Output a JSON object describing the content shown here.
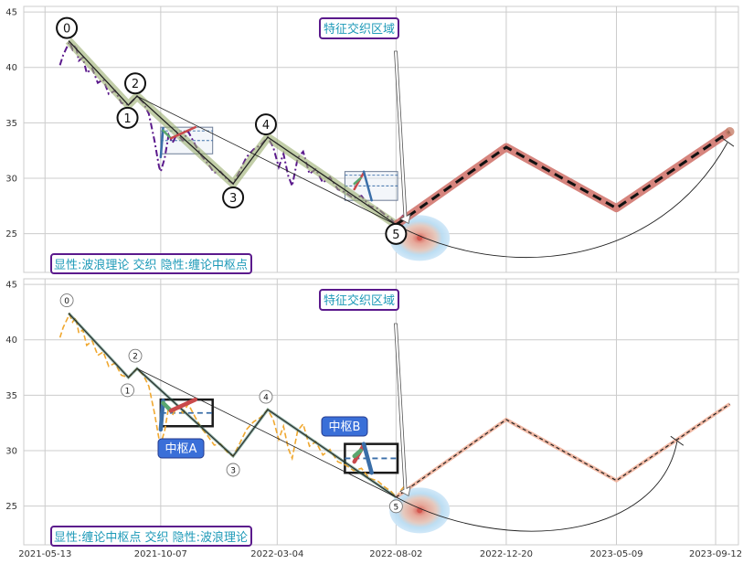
{
  "chart_data": [
    {
      "type": "line",
      "panel": "top",
      "x_ticks": [
        "2021-05-13",
        "2021-10-07",
        "2022-03-04",
        "2022-08-02",
        "2022-12-20",
        "2023-05-09",
        "2023-09-12"
      ],
      "y_ticks": [
        25,
        30,
        35,
        40,
        45
      ],
      "ylim": [
        21.5,
        45.5
      ],
      "xlim": [
        "2021-04-16",
        "2023-10-11"
      ],
      "grid": true,
      "annotation_title": "特征交织区域",
      "caption": "显性:波浪理论 交织 隐性:缠论中枢点",
      "wave_points": [
        {
          "label": "0",
          "x": "2021-06-12",
          "y": 42.4
        },
        {
          "label": "1",
          "x": "2021-08-27",
          "y": 36.6
        },
        {
          "label": "2",
          "x": "2021-09-07",
          "y": 37.4
        },
        {
          "label": "3",
          "x": "2022-01-07",
          "y": 29.5
        },
        {
          "label": "4",
          "x": "2022-02-20",
          "y": 33.7
        },
        {
          "label": "5",
          "x": "2022-08-02",
          "y": 25.8
        }
      ],
      "forecast": [
        {
          "x": "2022-08-02",
          "y": 25.8
        },
        {
          "x": "2022-12-20",
          "y": 32.8
        },
        {
          "x": "2023-05-09",
          "y": 27.3
        },
        {
          "x": "2023-09-30",
          "y": 34.2
        }
      ],
      "zones": [
        {
          "x_start": "2021-10-07",
          "x_end": "2021-12-12",
          "y_low": 32.2,
          "y_high": 34.6
        },
        {
          "x_start": "2022-05-29",
          "x_end": "2022-08-04",
          "y_low": 28.0,
          "y_high": 30.6
        }
      ],
      "price_series": [
        {
          "x": "2021-06-01",
          "y": 40.2
        },
        {
          "x": "2021-06-05",
          "y": 41.1
        },
        {
          "x": "2021-06-09",
          "y": 41.7
        },
        {
          "x": "2021-06-13",
          "y": 42.3
        },
        {
          "x": "2021-06-17",
          "y": 41.6
        },
        {
          "x": "2021-06-21",
          "y": 42.0
        },
        {
          "x": "2021-06-25",
          "y": 40.6
        },
        {
          "x": "2021-06-30",
          "y": 40.9
        },
        {
          "x": "2021-07-05",
          "y": 39.5
        },
        {
          "x": "2021-07-12",
          "y": 39.9
        },
        {
          "x": "2021-07-19",
          "y": 38.6
        },
        {
          "x": "2021-07-26",
          "y": 38.9
        },
        {
          "x": "2021-08-02",
          "y": 37.6
        },
        {
          "x": "2021-08-10",
          "y": 37.9
        },
        {
          "x": "2021-08-18",
          "y": 36.8
        },
        {
          "x": "2021-08-27",
          "y": 36.6
        },
        {
          "x": "2021-09-07",
          "y": 37.4
        },
        {
          "x": "2021-09-15",
          "y": 36.8
        },
        {
          "x": "2021-09-22",
          "y": 35.8
        },
        {
          "x": "2021-09-29",
          "y": 33.4
        },
        {
          "x": "2021-10-05",
          "y": 31.0
        },
        {
          "x": "2021-10-07",
          "y": 30.6
        },
        {
          "x": "2021-10-12",
          "y": 31.8
        },
        {
          "x": "2021-10-17",
          "y": 33.9
        },
        {
          "x": "2021-10-22",
          "y": 33.2
        },
        {
          "x": "2021-10-28",
          "y": 34.0
        },
        {
          "x": "2021-11-04",
          "y": 33.4
        },
        {
          "x": "2021-11-11",
          "y": 34.2
        },
        {
          "x": "2021-11-20",
          "y": 33.0
        },
        {
          "x": "2021-11-28",
          "y": 32.0
        },
        {
          "x": "2021-12-06",
          "y": 31.3
        },
        {
          "x": "2021-12-14",
          "y": 30.5
        },
        {
          "x": "2021-12-22",
          "y": 30.6
        },
        {
          "x": "2021-12-30",
          "y": 29.9
        },
        {
          "x": "2022-01-07",
          "y": 29.5
        },
        {
          "x": "2022-01-15",
          "y": 30.6
        },
        {
          "x": "2022-01-24",
          "y": 31.9
        },
        {
          "x": "2022-02-02",
          "y": 32.6
        },
        {
          "x": "2022-02-11",
          "y": 33.0
        },
        {
          "x": "2022-02-20",
          "y": 33.7
        },
        {
          "x": "2022-02-27",
          "y": 32.8
        },
        {
          "x": "2022-03-06",
          "y": 31.0
        },
        {
          "x": "2022-03-12",
          "y": 32.2
        },
        {
          "x": "2022-03-18",
          "y": 30.2
        },
        {
          "x": "2022-03-23",
          "y": 29.3
        },
        {
          "x": "2022-03-30",
          "y": 31.8
        },
        {
          "x": "2022-04-06",
          "y": 32.4
        },
        {
          "x": "2022-04-14",
          "y": 30.4
        },
        {
          "x": "2022-04-22",
          "y": 30.8
        },
        {
          "x": "2022-05-01",
          "y": 29.6
        },
        {
          "x": "2022-05-10",
          "y": 30.1
        },
        {
          "x": "2022-05-20",
          "y": 29.0
        },
        {
          "x": "2022-05-30",
          "y": 28.7
        },
        {
          "x": "2022-06-09",
          "y": 28.2
        },
        {
          "x": "2022-06-19",
          "y": 28.4
        },
        {
          "x": "2022-06-29",
          "y": 27.5
        },
        {
          "x": "2022-07-09",
          "y": 27.3
        },
        {
          "x": "2022-07-19",
          "y": 26.7
        },
        {
          "x": "2022-07-27",
          "y": 26.3
        },
        {
          "x": "2022-08-02",
          "y": 25.8
        },
        {
          "x": "2022-08-08",
          "y": 26.4
        },
        {
          "x": "2022-08-14",
          "y": 26.9
        }
      ]
    },
    {
      "type": "line",
      "panel": "bottom",
      "x_ticks": [
        "2021-05-13",
        "2021-10-07",
        "2022-03-04",
        "2022-08-02",
        "2022-12-20",
        "2023-05-09",
        "2023-09-12"
      ],
      "y_ticks": [
        25,
        30,
        35,
        40,
        45
      ],
      "ylim": [
        21.5,
        45.5
      ],
      "xlim": [
        "2021-04-16",
        "2023-10-11"
      ],
      "grid": true,
      "annotation_title": "特征交织区域",
      "caption": "显性:缠论中枢点 交织 隐性:波浪理论",
      "zone_labels": [
        "中枢A",
        "中枢B"
      ],
      "wave_points": [
        {
          "label": "0",
          "x": "2021-06-12",
          "y": 42.4
        },
        {
          "label": "1",
          "x": "2021-08-27",
          "y": 36.6
        },
        {
          "label": "2",
          "x": "2021-09-07",
          "y": 37.4
        },
        {
          "label": "3",
          "x": "2022-01-07",
          "y": 29.5
        },
        {
          "label": "4",
          "x": "2022-02-20",
          "y": 33.7
        },
        {
          "label": "5",
          "x": "2022-08-02",
          "y": 25.8
        }
      ],
      "forecast": [
        {
          "x": "2022-08-02",
          "y": 25.8
        },
        {
          "x": "2022-12-20",
          "y": 32.8
        },
        {
          "x": "2023-05-09",
          "y": 27.3
        },
        {
          "x": "2023-09-30",
          "y": 34.2
        }
      ],
      "zones": [
        {
          "x_start": "2021-10-07",
          "x_end": "2021-12-12",
          "y_low": 32.2,
          "y_high": 34.6
        },
        {
          "x_start": "2022-05-29",
          "x_end": "2022-08-04",
          "y_low": 28.0,
          "y_high": 30.6
        }
      ]
    }
  ],
  "colors": {
    "top_price": "#5b1a8c",
    "bottom_price": "#f0a830",
    "wave_band": "#9aae6e",
    "forecast_band": "#e27a73",
    "zone_blue": "#3a6ea8",
    "zone_red": "#c9494b",
    "zone_green": "#5aa66f",
    "label_box_fill": "#3a6fd8",
    "caption_text": "#1e9ab8",
    "caption_border": "#5b1a8c",
    "target_red": "#d4574f",
    "target_blue": "#a9d2ef"
  }
}
